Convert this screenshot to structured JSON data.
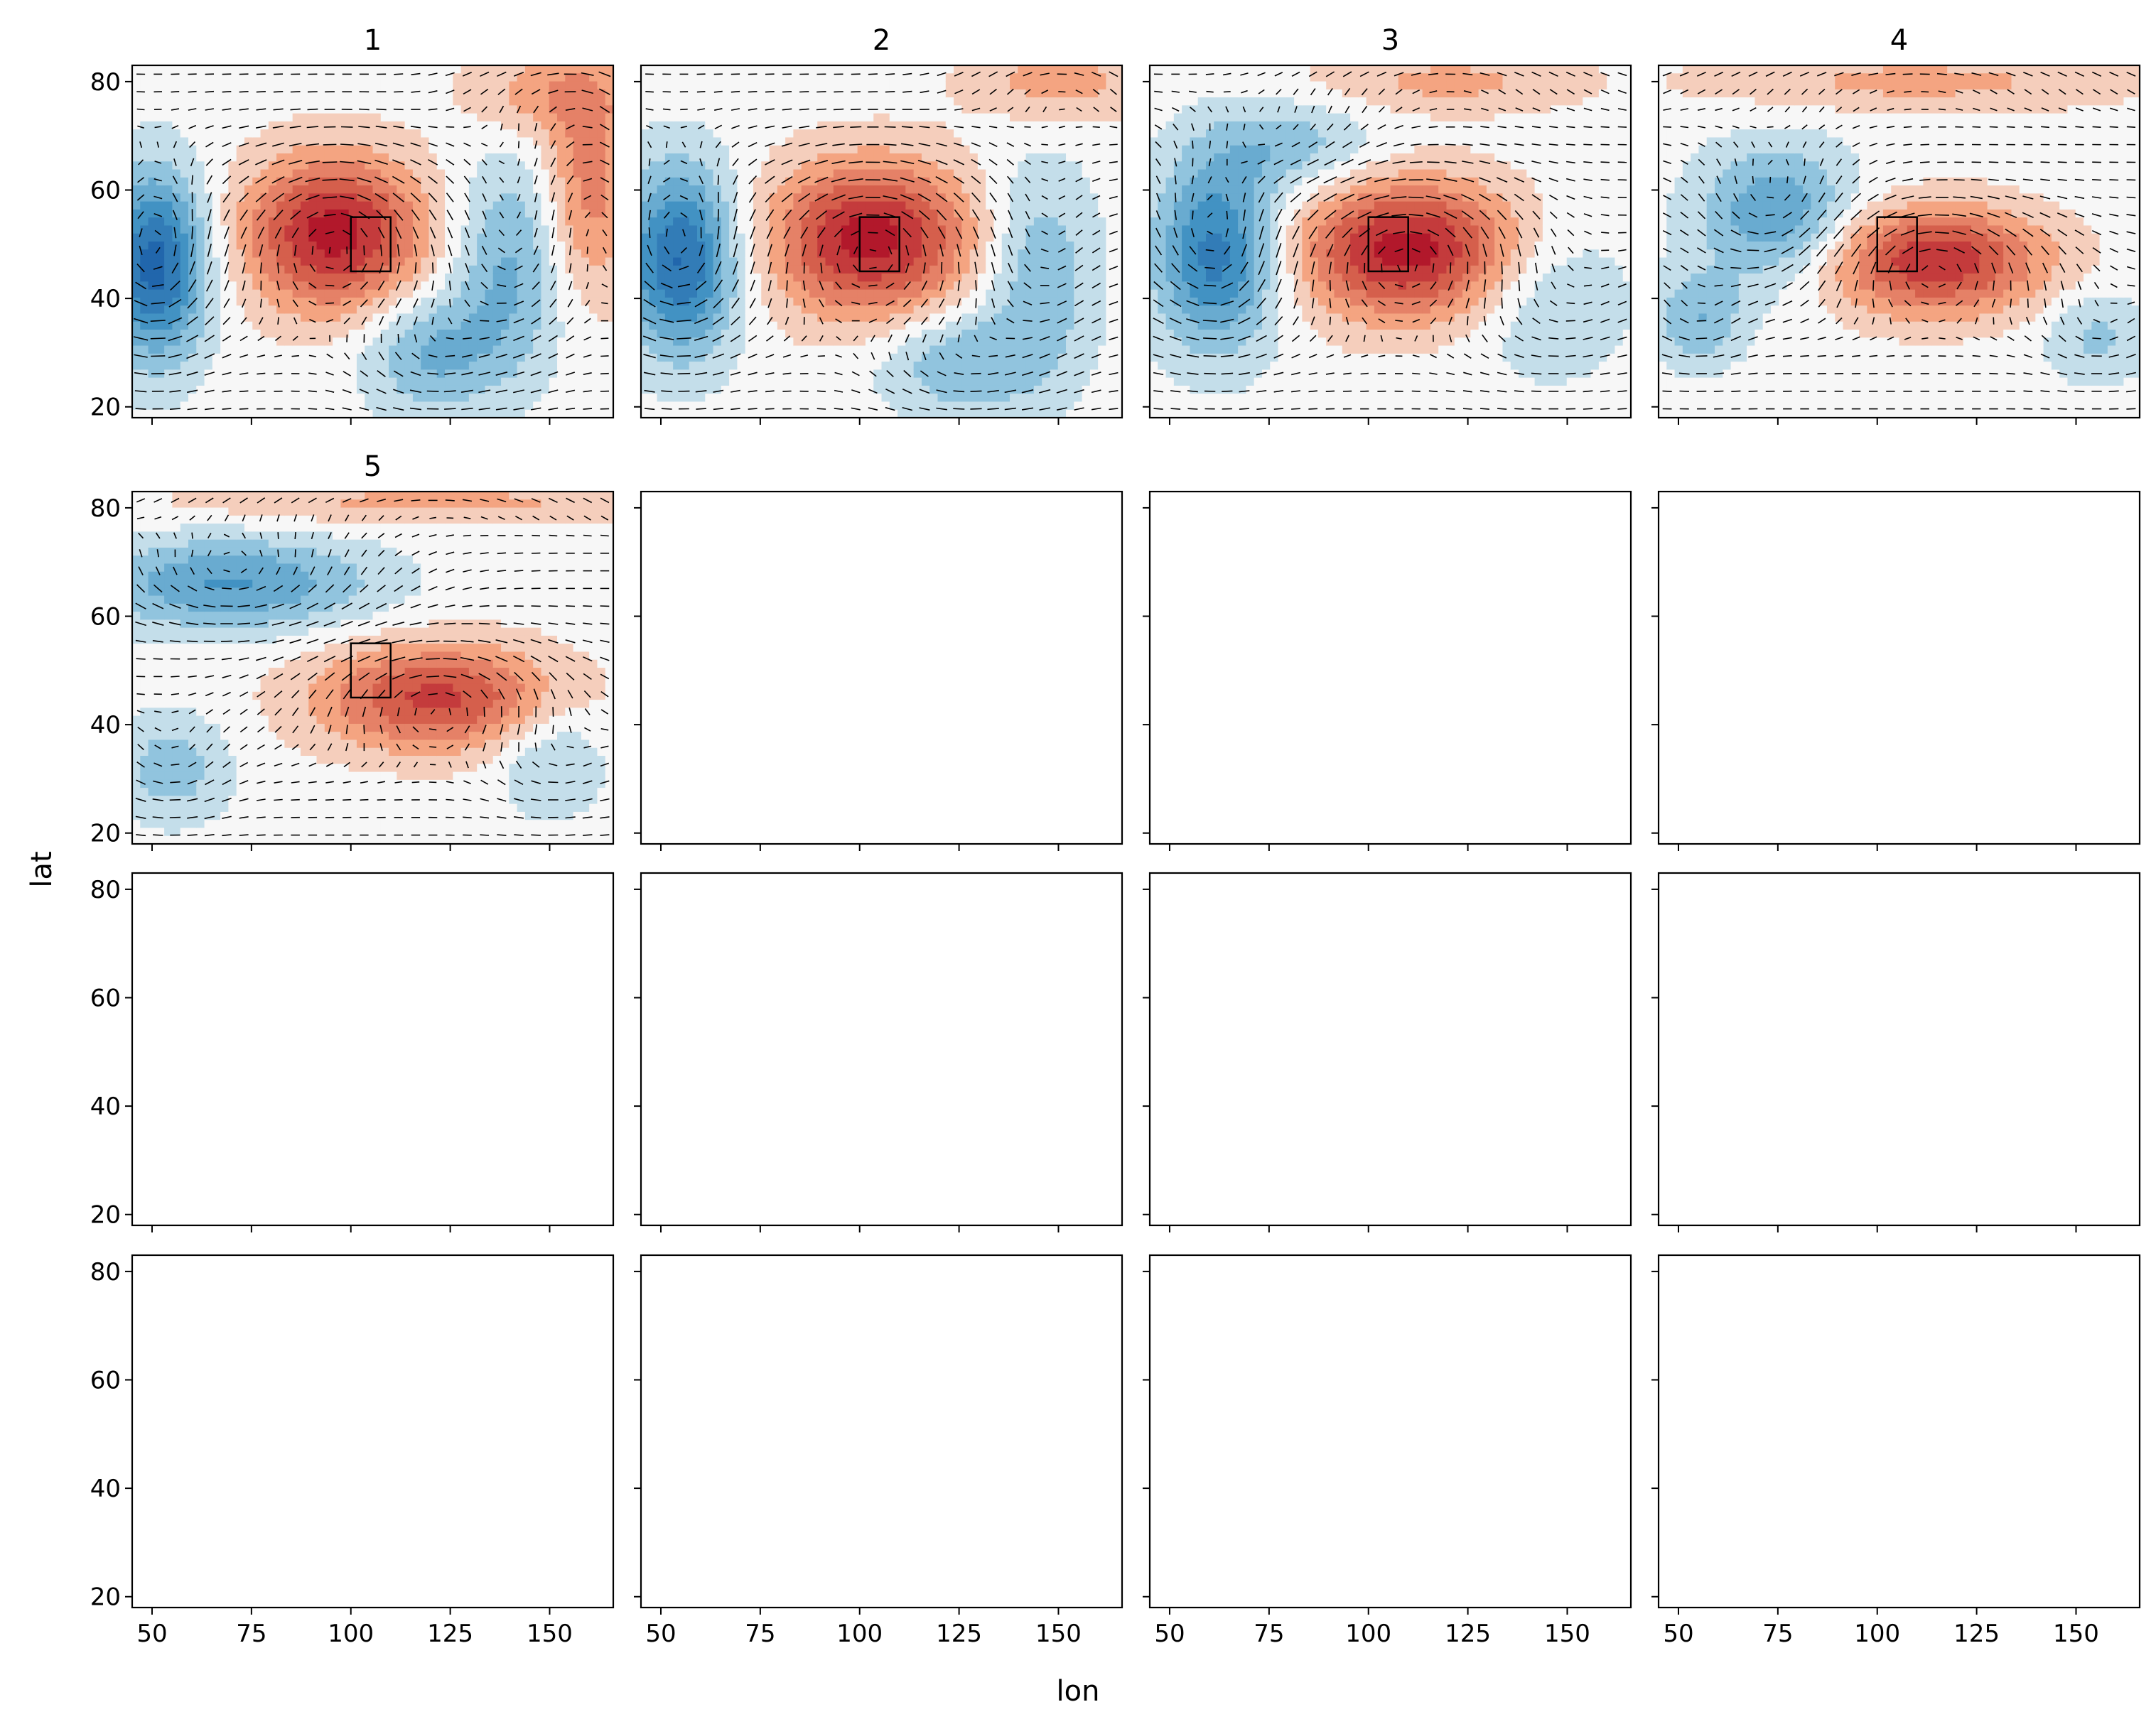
{
  "figure": {
    "xlabel": "lon",
    "ylabel": "lat"
  },
  "chart_data": {
    "type": "heatmap",
    "grid": "4x4 subplots, shared axes",
    "xlim": [
      45,
      166
    ],
    "ylim": [
      18,
      83
    ],
    "xticks": [
      50,
      75,
      100,
      125,
      150
    ],
    "yticks": [
      20,
      40,
      60,
      80
    ],
    "xticklabels": [
      "50",
      "75",
      "100",
      "125",
      "150"
    ],
    "yticklabels": [
      "20",
      "40",
      "60",
      "80"
    ],
    "colormap": "RdBu_r (blue negative, red positive)",
    "overlay": "wind vector quiver",
    "box": {
      "lon": [
        100,
        110
      ],
      "lat": [
        45,
        55
      ]
    },
    "panels": [
      {
        "title": "1",
        "anomalies": [
          {
            "sign": "neg",
            "lon": 51,
            "lat": 46,
            "amp": 1.0,
            "rx": 9,
            "ry": 12
          },
          {
            "sign": "pos",
            "lon": 96,
            "lat": 52,
            "amp": 1.0,
            "rx": 16,
            "ry": 10
          },
          {
            "sign": "neg",
            "lon": 140,
            "lat": 46,
            "amp": 0.45,
            "rx": 10,
            "ry": 14
          },
          {
            "sign": "pos",
            "lon": 160,
            "lat": 60,
            "amp": 0.5,
            "rx": 8,
            "ry": 14
          },
          {
            "sign": "pos",
            "lon": 150,
            "lat": 78,
            "amp": 0.35,
            "rx": 15,
            "ry": 6
          },
          {
            "sign": "neg",
            "lon": 120,
            "lat": 30,
            "amp": 0.45,
            "rx": 12,
            "ry": 8
          }
        ]
      },
      {
        "title": "2",
        "anomalies": [
          {
            "sign": "neg",
            "lon": 55,
            "lat": 47,
            "amp": 0.95,
            "rx": 10,
            "ry": 12
          },
          {
            "sign": "pos",
            "lon": 103,
            "lat": 51,
            "amp": 1.0,
            "rx": 18,
            "ry": 10
          },
          {
            "sign": "neg",
            "lon": 145,
            "lat": 45,
            "amp": 0.4,
            "rx": 10,
            "ry": 14
          },
          {
            "sign": "pos",
            "lon": 150,
            "lat": 80,
            "amp": 0.35,
            "rx": 16,
            "ry": 5
          },
          {
            "sign": "neg",
            "lon": 125,
            "lat": 28,
            "amp": 0.4,
            "rx": 14,
            "ry": 7
          }
        ]
      },
      {
        "title": "3",
        "anomalies": [
          {
            "sign": "neg",
            "lon": 62,
            "lat": 48,
            "amp": 0.85,
            "rx": 11,
            "ry": 12
          },
          {
            "sign": "pos",
            "lon": 110,
            "lat": 49,
            "amp": 1.0,
            "rx": 20,
            "ry": 9
          },
          {
            "sign": "neg",
            "lon": 145,
            "lat": 40,
            "amp": 0.3,
            "rx": 14,
            "ry": 10
          },
          {
            "sign": "pos",
            "lon": 120,
            "lat": 80,
            "amp": 0.3,
            "rx": 25,
            "ry": 4
          },
          {
            "sign": "neg",
            "lon": 80,
            "lat": 68,
            "amp": 0.35,
            "rx": 15,
            "ry": 6
          }
        ]
      },
      {
        "title": "4",
        "anomalies": [
          {
            "sign": "neg",
            "lon": 75,
            "lat": 55,
            "amp": 0.6,
            "rx": 14,
            "ry": 9
          },
          {
            "sign": "pos",
            "lon": 114,
            "lat": 47,
            "amp": 0.9,
            "rx": 20,
            "ry": 7
          },
          {
            "sign": "neg",
            "lon": 55,
            "lat": 36,
            "amp": 0.4,
            "rx": 8,
            "ry": 6
          },
          {
            "sign": "pos",
            "lon": 110,
            "lat": 80,
            "amp": 0.3,
            "rx": 40,
            "ry": 4
          },
          {
            "sign": "neg",
            "lon": 155,
            "lat": 33,
            "amp": 0.3,
            "rx": 9,
            "ry": 6
          }
        ]
      },
      {
        "title": "5",
        "anomalies": [
          {
            "sign": "neg",
            "lon": 70,
            "lat": 66,
            "amp": 0.6,
            "rx": 25,
            "ry": 6
          },
          {
            "sign": "pos",
            "lon": 122,
            "lat": 45,
            "amp": 0.8,
            "rx": 22,
            "ry": 7
          },
          {
            "sign": "neg",
            "lon": 55,
            "lat": 32,
            "amp": 0.35,
            "rx": 10,
            "ry": 7
          },
          {
            "sign": "pos",
            "lon": 120,
            "lat": 81,
            "amp": 0.3,
            "rx": 45,
            "ry": 3
          },
          {
            "sign": "neg",
            "lon": 150,
            "lat": 35,
            "amp": 0.3,
            "rx": 10,
            "ry": 8
          }
        ]
      },
      {
        "title": "",
        "anomalies": []
      },
      {
        "title": "",
        "anomalies": []
      },
      {
        "title": "",
        "anomalies": []
      },
      {
        "title": "",
        "anomalies": []
      },
      {
        "title": "",
        "anomalies": []
      },
      {
        "title": "",
        "anomalies": []
      },
      {
        "title": "",
        "anomalies": []
      },
      {
        "title": "",
        "anomalies": []
      },
      {
        "title": "",
        "anomalies": []
      },
      {
        "title": "",
        "anomalies": []
      },
      {
        "title": "",
        "anomalies": []
      }
    ]
  }
}
